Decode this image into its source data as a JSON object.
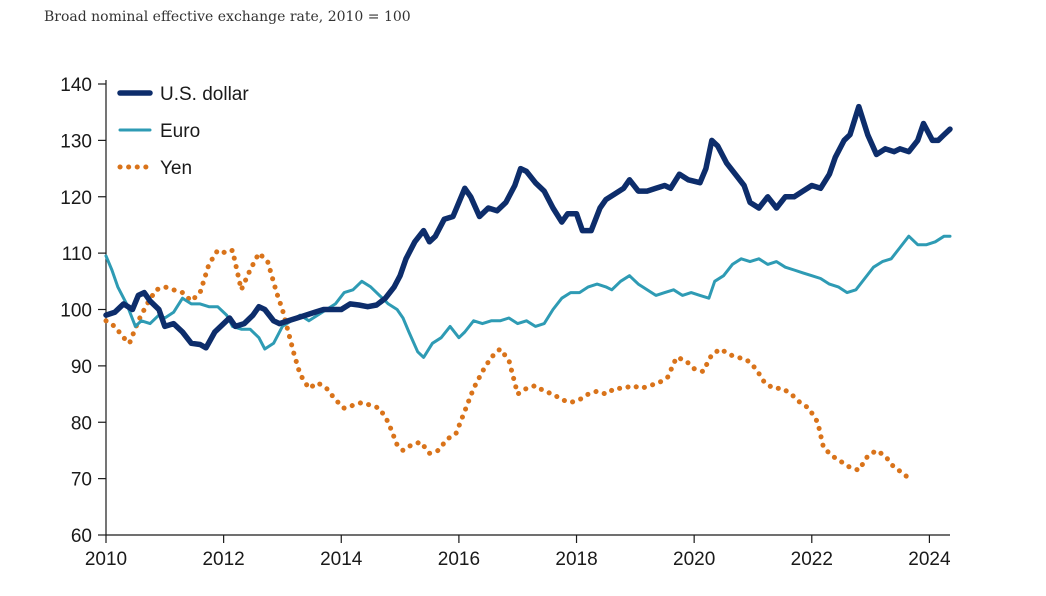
{
  "chart_data": {
    "type": "line",
    "title": "Broad nominal effective exchange rate, 2010 = 100",
    "xlabel": "",
    "ylabel": "",
    "xlim": [
      2010,
      2024.35
    ],
    "ylim": [
      60,
      140
    ],
    "x_ticks": [
      2010,
      2012,
      2014,
      2016,
      2018,
      2020,
      2022,
      2024
    ],
    "y_ticks": [
      60,
      70,
      80,
      90,
      100,
      110,
      120,
      130,
      140
    ],
    "grid": false,
    "legend_position": "top-left",
    "series": [
      {
        "name": "U.S. dollar",
        "color": "#0d2d6b",
        "style": "solid-thick",
        "points": [
          [
            2010.0,
            99
          ],
          [
            2010.15,
            99.5
          ],
          [
            2010.3,
            101
          ],
          [
            2010.45,
            100
          ],
          [
            2010.55,
            102.5
          ],
          [
            2010.65,
            103
          ],
          [
            2010.75,
            101.5
          ],
          [
            2010.9,
            100
          ],
          [
            2011.0,
            97
          ],
          [
            2011.15,
            97.5
          ],
          [
            2011.3,
            96
          ],
          [
            2011.45,
            94
          ],
          [
            2011.6,
            93.8
          ],
          [
            2011.7,
            93.2
          ],
          [
            2011.85,
            96
          ],
          [
            2012.0,
            97.5
          ],
          [
            2012.1,
            98.5
          ],
          [
            2012.2,
            97
          ],
          [
            2012.35,
            97.5
          ],
          [
            2012.5,
            99
          ],
          [
            2012.6,
            100.5
          ],
          [
            2012.7,
            100
          ],
          [
            2012.85,
            98
          ],
          [
            2012.95,
            97.5
          ],
          [
            2013.1,
            98
          ],
          [
            2013.25,
            98.5
          ],
          [
            2013.4,
            99
          ],
          [
            2013.55,
            99.5
          ],
          [
            2013.7,
            100
          ],
          [
            2013.85,
            100
          ],
          [
            2014.0,
            100
          ],
          [
            2014.15,
            101
          ],
          [
            2014.3,
            100.8
          ],
          [
            2014.45,
            100.5
          ],
          [
            2014.6,
            100.8
          ],
          [
            2014.75,
            102
          ],
          [
            2014.9,
            104
          ],
          [
            2015.0,
            106
          ],
          [
            2015.1,
            109
          ],
          [
            2015.25,
            112
          ],
          [
            2015.4,
            114
          ],
          [
            2015.5,
            112
          ],
          [
            2015.6,
            113
          ],
          [
            2015.75,
            116
          ],
          [
            2015.9,
            116.5
          ],
          [
            2016.0,
            119
          ],
          [
            2016.1,
            121.5
          ],
          [
            2016.2,
            120
          ],
          [
            2016.35,
            116.5
          ],
          [
            2016.5,
            118
          ],
          [
            2016.65,
            117.5
          ],
          [
            2016.8,
            119
          ],
          [
            2016.95,
            122
          ],
          [
            2017.05,
            125
          ],
          [
            2017.15,
            124.5
          ],
          [
            2017.3,
            122.5
          ],
          [
            2017.45,
            121
          ],
          [
            2017.6,
            118
          ],
          [
            2017.75,
            115.5
          ],
          [
            2017.85,
            117
          ],
          [
            2018.0,
            117
          ],
          [
            2018.1,
            114
          ],
          [
            2018.25,
            114
          ],
          [
            2018.4,
            118
          ],
          [
            2018.5,
            119.5
          ],
          [
            2018.65,
            120.5
          ],
          [
            2018.8,
            121.5
          ],
          [
            2018.9,
            123
          ],
          [
            2019.05,
            121
          ],
          [
            2019.2,
            121
          ],
          [
            2019.35,
            121.5
          ],
          [
            2019.5,
            122
          ],
          [
            2019.6,
            121.5
          ],
          [
            2019.75,
            124
          ],
          [
            2019.9,
            123
          ],
          [
            2020.1,
            122.5
          ],
          [
            2020.2,
            125
          ],
          [
            2020.3,
            130
          ],
          [
            2020.4,
            129
          ],
          [
            2020.55,
            126
          ],
          [
            2020.7,
            124
          ],
          [
            2020.85,
            122
          ],
          [
            2020.95,
            119
          ],
          [
            2021.1,
            118
          ],
          [
            2021.25,
            120
          ],
          [
            2021.4,
            118
          ],
          [
            2021.55,
            120
          ],
          [
            2021.7,
            120
          ],
          [
            2021.85,
            121
          ],
          [
            2022.0,
            122
          ],
          [
            2022.15,
            121.5
          ],
          [
            2022.3,
            124
          ],
          [
            2022.4,
            127
          ],
          [
            2022.55,
            130
          ],
          [
            2022.65,
            131
          ],
          [
            2022.8,
            136
          ],
          [
            2022.95,
            131
          ],
          [
            2023.1,
            127.5
          ],
          [
            2023.25,
            128.5
          ],
          [
            2023.4,
            128
          ],
          [
            2023.5,
            128.5
          ],
          [
            2023.65,
            128
          ],
          [
            2023.8,
            130
          ],
          [
            2023.9,
            133
          ],
          [
            2024.05,
            130
          ],
          [
            2024.15,
            130
          ],
          [
            2024.25,
            131
          ],
          [
            2024.35,
            132
          ]
        ]
      },
      {
        "name": "Euro",
        "color": "#2e9bb4",
        "style": "solid",
        "points": [
          [
            2010.0,
            109.5
          ],
          [
            2010.1,
            107
          ],
          [
            2010.2,
            104
          ],
          [
            2010.35,
            101
          ],
          [
            2010.5,
            97
          ],
          [
            2010.6,
            98
          ],
          [
            2010.75,
            97.5
          ],
          [
            2010.9,
            99
          ],
          [
            2011.0,
            98.5
          ],
          [
            2011.15,
            99.5
          ],
          [
            2011.3,
            102
          ],
          [
            2011.45,
            101
          ],
          [
            2011.6,
            101
          ],
          [
            2011.75,
            100.5
          ],
          [
            2011.9,
            100.5
          ],
          [
            2012.05,
            99
          ],
          [
            2012.15,
            97
          ],
          [
            2012.3,
            96.5
          ],
          [
            2012.45,
            96.5
          ],
          [
            2012.6,
            95
          ],
          [
            2012.7,
            93
          ],
          [
            2012.85,
            94
          ],
          [
            2013.0,
            97
          ],
          [
            2013.15,
            98
          ],
          [
            2013.3,
            99
          ],
          [
            2013.45,
            98
          ],
          [
            2013.6,
            99
          ],
          [
            2013.75,
            100
          ],
          [
            2013.9,
            101
          ],
          [
            2014.05,
            103
          ],
          [
            2014.2,
            103.5
          ],
          [
            2014.35,
            105
          ],
          [
            2014.5,
            104
          ],
          [
            2014.65,
            102.5
          ],
          [
            2014.8,
            101
          ],
          [
            2014.95,
            100
          ],
          [
            2015.05,
            98.5
          ],
          [
            2015.15,
            96
          ],
          [
            2015.3,
            92.5
          ],
          [
            2015.4,
            91.5
          ],
          [
            2015.55,
            94
          ],
          [
            2015.7,
            95
          ],
          [
            2015.85,
            97
          ],
          [
            2016.0,
            95
          ],
          [
            2016.1,
            96
          ],
          [
            2016.25,
            98
          ],
          [
            2016.4,
            97.5
          ],
          [
            2016.55,
            98
          ],
          [
            2016.7,
            98
          ],
          [
            2016.85,
            98.5
          ],
          [
            2017.0,
            97.5
          ],
          [
            2017.15,
            98
          ],
          [
            2017.3,
            97
          ],
          [
            2017.45,
            97.5
          ],
          [
            2017.6,
            100
          ],
          [
            2017.75,
            102
          ],
          [
            2017.9,
            103
          ],
          [
            2018.05,
            103
          ],
          [
            2018.2,
            104
          ],
          [
            2018.35,
            104.5
          ],
          [
            2018.5,
            104
          ],
          [
            2018.6,
            103.5
          ],
          [
            2018.75,
            105
          ],
          [
            2018.9,
            106
          ],
          [
            2019.05,
            104.5
          ],
          [
            2019.2,
            103.5
          ],
          [
            2019.35,
            102.5
          ],
          [
            2019.5,
            103
          ],
          [
            2019.65,
            103.5
          ],
          [
            2019.8,
            102.5
          ],
          [
            2019.95,
            103
          ],
          [
            2020.1,
            102.5
          ],
          [
            2020.25,
            102
          ],
          [
            2020.35,
            105
          ],
          [
            2020.5,
            106
          ],
          [
            2020.65,
            108
          ],
          [
            2020.8,
            109
          ],
          [
            2020.95,
            108.5
          ],
          [
            2021.1,
            109
          ],
          [
            2021.25,
            108
          ],
          [
            2021.4,
            108.5
          ],
          [
            2021.55,
            107.5
          ],
          [
            2021.7,
            107
          ],
          [
            2021.85,
            106.5
          ],
          [
            2022.0,
            106
          ],
          [
            2022.15,
            105.5
          ],
          [
            2022.3,
            104.5
          ],
          [
            2022.45,
            104
          ],
          [
            2022.6,
            103
          ],
          [
            2022.75,
            103.5
          ],
          [
            2022.9,
            105.5
          ],
          [
            2023.05,
            107.5
          ],
          [
            2023.2,
            108.5
          ],
          [
            2023.35,
            109
          ],
          [
            2023.5,
            111
          ],
          [
            2023.65,
            113
          ],
          [
            2023.8,
            111.5
          ],
          [
            2023.95,
            111.5
          ],
          [
            2024.1,
            112
          ],
          [
            2024.25,
            113
          ],
          [
            2024.35,
            113
          ]
        ]
      },
      {
        "name": "Yen",
        "color": "#d9731a",
        "style": "dotted",
        "points": [
          [
            2010.0,
            98
          ],
          [
            2010.15,
            97
          ],
          [
            2010.3,
            95
          ],
          [
            2010.4,
            94
          ],
          [
            2010.55,
            98
          ],
          [
            2010.7,
            101
          ],
          [
            2010.85,
            103.5
          ],
          [
            2011.0,
            104
          ],
          [
            2011.15,
            103.5
          ],
          [
            2011.3,
            103
          ],
          [
            2011.45,
            101.5
          ],
          [
            2011.6,
            103
          ],
          [
            2011.75,
            108
          ],
          [
            2011.9,
            110.5
          ],
          [
            2012.05,
            110
          ],
          [
            2012.15,
            110.5
          ],
          [
            2012.3,
            103.5
          ],
          [
            2012.45,
            107
          ],
          [
            2012.6,
            110
          ],
          [
            2012.75,
            108.5
          ],
          [
            2012.9,
            103
          ],
          [
            2013.0,
            100
          ],
          [
            2013.1,
            96
          ],
          [
            2013.2,
            92
          ],
          [
            2013.3,
            88.5
          ],
          [
            2013.45,
            86
          ],
          [
            2013.6,
            87
          ],
          [
            2013.75,
            86
          ],
          [
            2013.9,
            84
          ],
          [
            2014.05,
            82.5
          ],
          [
            2014.2,
            83
          ],
          [
            2014.35,
            83.5
          ],
          [
            2014.5,
            83
          ],
          [
            2014.65,
            82.5
          ],
          [
            2014.8,
            80
          ],
          [
            2014.95,
            76
          ],
          [
            2015.05,
            75
          ],
          [
            2015.2,
            76
          ],
          [
            2015.35,
            76.5
          ],
          [
            2015.5,
            74.5
          ],
          [
            2015.65,
            75
          ],
          [
            2015.8,
            77
          ],
          [
            2015.95,
            78
          ],
          [
            2016.1,
            82
          ],
          [
            2016.25,
            86
          ],
          [
            2016.4,
            89
          ],
          [
            2016.55,
            91.5
          ],
          [
            2016.7,
            93
          ],
          [
            2016.85,
            91
          ],
          [
            2017.0,
            85
          ],
          [
            2017.15,
            86
          ],
          [
            2017.3,
            86.5
          ],
          [
            2017.45,
            85.5
          ],
          [
            2017.6,
            85
          ],
          [
            2017.75,
            84
          ],
          [
            2017.9,
            83.5
          ],
          [
            2018.05,
            84
          ],
          [
            2018.2,
            85
          ],
          [
            2018.35,
            85.5
          ],
          [
            2018.5,
            85
          ],
          [
            2018.65,
            86
          ],
          [
            2018.8,
            86
          ],
          [
            2018.95,
            86.5
          ],
          [
            2019.1,
            86
          ],
          [
            2019.25,
            86.5
          ],
          [
            2019.4,
            87
          ],
          [
            2019.55,
            88
          ],
          [
            2019.7,
            91.5
          ],
          [
            2019.85,
            91
          ],
          [
            2020.0,
            89.5
          ],
          [
            2020.15,
            89
          ],
          [
            2020.3,
            92
          ],
          [
            2020.45,
            93
          ],
          [
            2020.6,
            92
          ],
          [
            2020.75,
            91.5
          ],
          [
            2020.9,
            91
          ],
          [
            2021.05,
            89.5
          ],
          [
            2021.2,
            87
          ],
          [
            2021.35,
            86
          ],
          [
            2021.5,
            86
          ],
          [
            2021.65,
            85
          ],
          [
            2021.8,
            83.5
          ],
          [
            2021.95,
            82.5
          ],
          [
            2022.1,
            80
          ],
          [
            2022.2,
            75.5
          ],
          [
            2022.35,
            74
          ],
          [
            2022.5,
            73
          ],
          [
            2022.65,
            72
          ],
          [
            2022.8,
            71.5
          ],
          [
            2022.95,
            74
          ],
          [
            2023.1,
            75
          ],
          [
            2023.25,
            74
          ],
          [
            2023.4,
            72
          ],
          [
            2023.55,
            71
          ],
          [
            2023.7,
            69.5
          ]
        ]
      }
    ]
  }
}
